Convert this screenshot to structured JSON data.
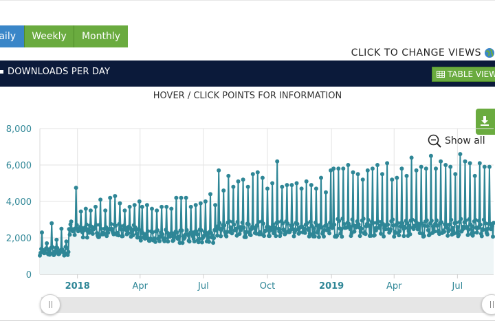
{
  "tabs": [
    {
      "label": "aily"
    },
    {
      "label": "Weekly"
    },
    {
      "label": "Monthly"
    }
  ],
  "change_views": "CLICK TO CHANGE VIEWS",
  "header": {
    "title": "DOWNLOADS PER DAY",
    "table_view": "TABLE VIEW"
  },
  "hint": "HOVER / CLICK POINTS FOR INFORMATION",
  "show_all": "Show all",
  "icons": {
    "globe": "globe-icon",
    "table": "table-icon",
    "download": "download-icon",
    "zoom_out": "zoom-out-icon"
  },
  "colors": {
    "series": "#2e8696",
    "area": "#eef5f6",
    "header_bg": "#0b1a3a",
    "green": "#6aab3f",
    "blue": "#3a86c8"
  },
  "chart_data": {
    "type": "line",
    "y_ticks": [
      "0",
      "2,000",
      "4,000",
      "6,000",
      "8,000"
    ],
    "ylim": [
      0,
      8000
    ],
    "x_range": [
      "2017-11-08",
      "2019-08-22"
    ],
    "x_ticks": [
      {
        "label": "2018",
        "date": "2018-01-01",
        "bold": true
      },
      {
        "label": "Apr",
        "date": "2018-04-01"
      },
      {
        "label": "Jul",
        "date": "2018-07-01"
      },
      {
        "label": "Oct",
        "date": "2018-10-01"
      },
      {
        "label": "2019",
        "date": "2019-01-01",
        "bold": true
      },
      {
        "label": "Apr",
        "date": "2019-04-01"
      },
      {
        "label": "Jul",
        "date": "2019-07-01"
      }
    ],
    "grid": true,
    "segments": [
      {
        "start": "2017-11-08",
        "end": "2017-12-19",
        "base": 1150,
        "amp": 200,
        "peaks": [
          2300,
          1700,
          2800,
          1900,
          2500,
          1800,
          3100
        ]
      },
      {
        "start": "2017-12-20",
        "end": "2018-03-31",
        "base": 2200,
        "amp": 300,
        "peaks": [
          2900,
          4750,
          3450,
          3600,
          3500,
          3700,
          4100,
          3500,
          4200,
          4300,
          3900,
          3500,
          3700,
          3800,
          4000
        ]
      },
      {
        "start": "2018-04-01",
        "end": "2018-07-19",
        "base": 1900,
        "amp": 300,
        "peaks": [
          3700,
          3800,
          3600,
          3500,
          3700,
          3700,
          3600,
          4200,
          4200,
          4200,
          3700,
          3800,
          3900,
          4000,
          4400,
          3800
        ]
      },
      {
        "start": "2018-07-20",
        "end": "2018-12-31",
        "base": 2250,
        "amp": 350,
        "peaks": [
          5700,
          4600,
          5400,
          4800,
          5100,
          5200,
          4800,
          5500,
          5600,
          5300,
          4700,
          5000,
          6200,
          4800,
          4900,
          4900,
          5000,
          4700,
          5100,
          4900,
          4700,
          5300,
          4500
        ]
      },
      {
        "start": "2019-01-01",
        "end": "2019-08-22",
        "base": 2300,
        "amp": 400,
        "peaks": [
          5800,
          5800,
          5800,
          6000,
          5600,
          5500,
          5200,
          5700,
          5800,
          6000,
          5500,
          6100,
          5200,
          5300,
          5800,
          5400,
          6400,
          5700,
          5900,
          5800,
          6500,
          5800,
          6200,
          6000,
          5900,
          5500,
          6600,
          6200,
          6100,
          5400,
          6100,
          5900,
          5900,
          6000,
          6000
        ]
      }
    ]
  }
}
